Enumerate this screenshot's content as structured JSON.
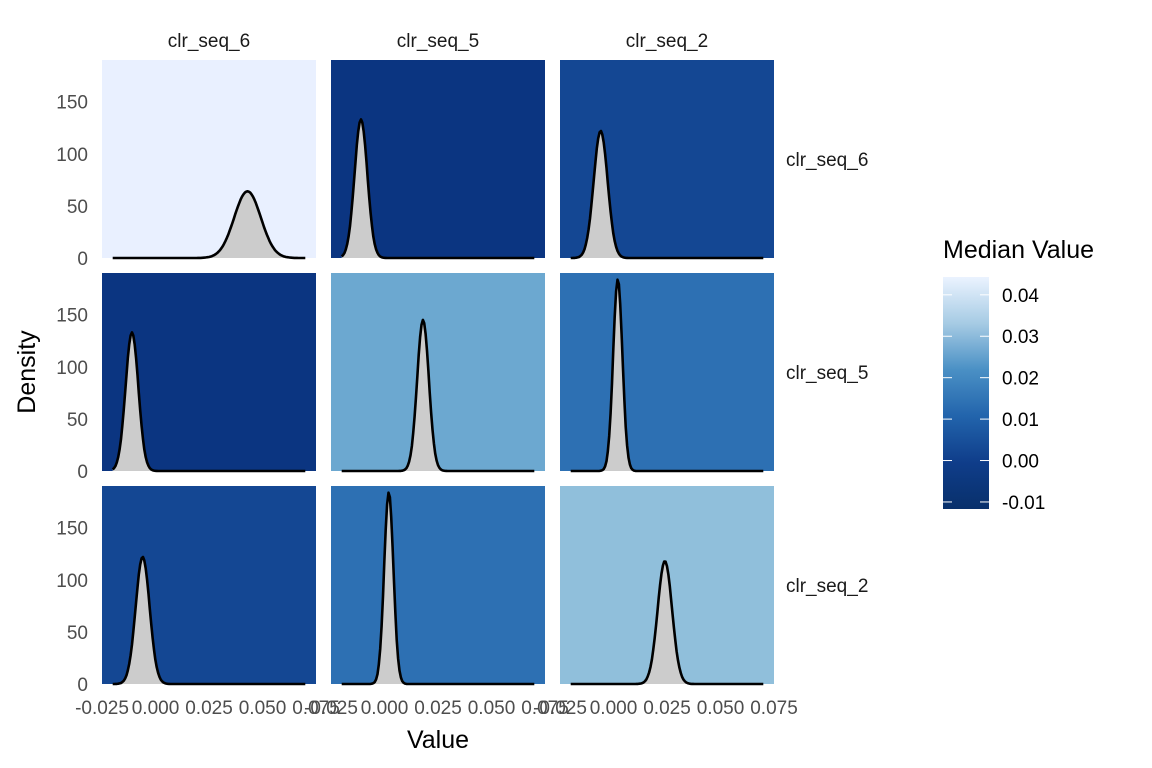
{
  "chart_data": {
    "type": "density-facet-grid",
    "xlabel": "Value",
    "ylabel": "Density",
    "col_labels": [
      "clr_seq_6",
      "clr_seq_5",
      "clr_seq_2"
    ],
    "row_labels": [
      "clr_seq_6",
      "clr_seq_5",
      "clr_seq_2"
    ],
    "xlim": [
      -0.025,
      0.075
    ],
    "ylim": [
      0,
      190
    ],
    "x_ticks": [
      -0.025,
      0.0,
      0.025,
      0.05,
      0.075
    ],
    "x_tick_labels": [
      "-0.025",
      "0.000",
      "0.025",
      "0.050",
      "0.075"
    ],
    "y_ticks": [
      0,
      50,
      100,
      150
    ],
    "y_tick_labels": [
      "0",
      "50",
      "100",
      "150"
    ],
    "fill_color": "#cccccc",
    "line_color": "#000000",
    "panels": [
      {
        "row": 0,
        "col": 0,
        "median": 0.044,
        "peak_x": 0.043,
        "peak_y": 64,
        "support": [
          -0.02,
          0.07
        ],
        "bg": "#e9f0ff"
      },
      {
        "row": 0,
        "col": 1,
        "median": -0.012,
        "peak_x": -0.011,
        "peak_y": 133,
        "support": [
          -0.02,
          0.07
        ],
        "bg": "#0b3581"
      },
      {
        "row": 0,
        "col": 2,
        "median": -0.006,
        "peak_x": -0.006,
        "peak_y": 122,
        "support": [
          -0.02,
          0.07
        ],
        "bg": "#144793"
      },
      {
        "row": 1,
        "col": 0,
        "median": -0.012,
        "peak_x": -0.011,
        "peak_y": 133,
        "support": [
          -0.02,
          0.07
        ],
        "bg": "#0b3581"
      },
      {
        "row": 1,
        "col": 1,
        "median": 0.019,
        "peak_x": 0.018,
        "peak_y": 145,
        "support": [
          -0.02,
          0.07
        ],
        "bg": "#6ca8d0"
      },
      {
        "row": 1,
        "col": 2,
        "median": 0.002,
        "peak_x": 0.002,
        "peak_y": 184,
        "support": [
          -0.02,
          0.07
        ],
        "bg": "#2d70b3"
      },
      {
        "row": 2,
        "col": 0,
        "median": -0.006,
        "peak_x": -0.006,
        "peak_y": 122,
        "support": [
          -0.02,
          0.07
        ],
        "bg": "#144793"
      },
      {
        "row": 2,
        "col": 1,
        "median": 0.002,
        "peak_x": 0.002,
        "peak_y": 184,
        "support": [
          -0.02,
          0.07
        ],
        "bg": "#2d70b3"
      },
      {
        "row": 2,
        "col": 2,
        "median": 0.024,
        "peak_x": 0.024,
        "peak_y": 118,
        "support": [
          -0.02,
          0.07
        ],
        "bg": "#90bfdb"
      }
    ],
    "legend": {
      "title": "Median Value",
      "ticks": [
        0.04,
        0.03,
        0.02,
        0.01,
        0.0,
        -0.01
      ],
      "tick_labels": [
        "0.04",
        "0.03",
        "0.02",
        "0.01",
        "0.00",
        "-0.01"
      ],
      "range": [
        -0.0117,
        0.0443
      ],
      "color_low": "#08306b",
      "color_high": "#ebf3ff",
      "placement": "right"
    }
  }
}
